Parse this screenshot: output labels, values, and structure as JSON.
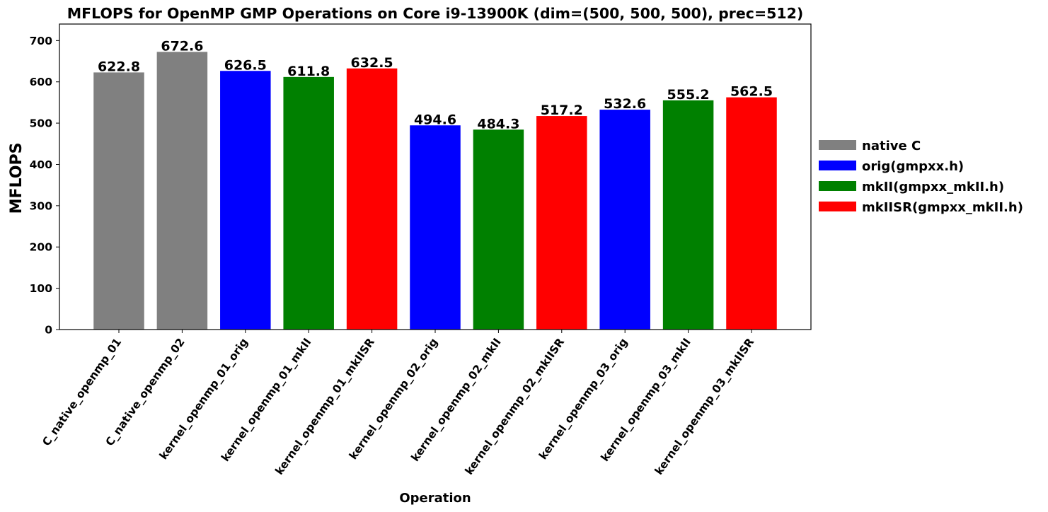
{
  "chart_data": {
    "type": "bar",
    "title": "MFLOPS for OpenMP GMP Operations on Core i9-13900K (dim=(500, 500, 500), prec=512)",
    "xlabel": "Operation",
    "ylabel": "MFLOPS",
    "ylim": [
      0,
      740
    ],
    "yticks": [
      0,
      100,
      200,
      300,
      400,
      500,
      600,
      700
    ],
    "grid": false,
    "legend_placement": "right-outside",
    "categories": [
      "C_native_openmp_01",
      "C_native_openmp_02",
      "kernel_openmp_01_orig",
      "kernel_openmp_01_mkII",
      "kernel_openmp_01_mkIISR",
      "kernel_openmp_02_orig",
      "kernel_openmp_02_mkII",
      "kernel_openmp_02_mkIISR",
      "kernel_openmp_03_orig",
      "kernel_openmp_03_mkII",
      "kernel_openmp_03_mkIISR"
    ],
    "values": [
      622.8,
      672.6,
      626.5,
      611.8,
      632.5,
      494.6,
      484.3,
      517.2,
      532.6,
      555.2,
      562.5
    ],
    "data_labels": [
      "622.8",
      "672.6",
      "626.5",
      "611.8",
      "632.5",
      "494.6",
      "484.3",
      "517.2",
      "532.6",
      "555.2",
      "562.5"
    ],
    "bar_groups": [
      0,
      0,
      1,
      2,
      3,
      1,
      2,
      3,
      1,
      2,
      3
    ],
    "legend": [
      {
        "name": "native C",
        "color": "#808080"
      },
      {
        "name": "orig(gmpxx.h)",
        "color": "#0000ff"
      },
      {
        "name": "mkII(gmpxx_mkII.h)",
        "color": "#008000"
      },
      {
        "name": "mkIISR(gmpxx_mkII.h)",
        "color": "#ff0000"
      }
    ]
  }
}
